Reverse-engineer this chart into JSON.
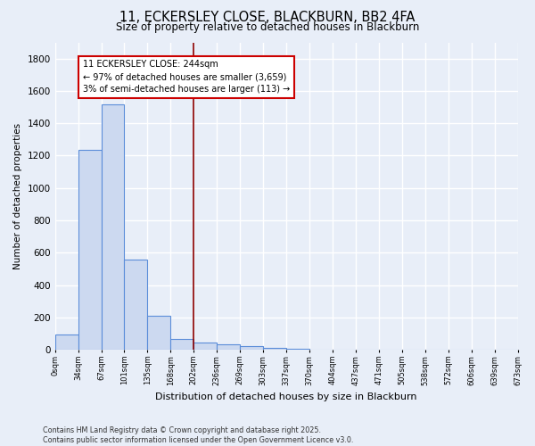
{
  "title": "11, ECKERSLEY CLOSE, BLACKBURN, BB2 4FA",
  "subtitle": "Size of property relative to detached houses in Blackburn",
  "xlabel": "Distribution of detached houses by size in Blackburn",
  "ylabel": "Number of detached properties",
  "footer_line1": "Contains HM Land Registry data © Crown copyright and database right 2025.",
  "footer_line2": "Contains public sector information licensed under the Open Government Licence v3.0.",
  "bins": [
    "0sqm",
    "34sqm",
    "67sqm",
    "101sqm",
    "135sqm",
    "168sqm",
    "202sqm",
    "236sqm",
    "269sqm",
    "303sqm",
    "337sqm",
    "370sqm",
    "404sqm",
    "437sqm",
    "471sqm",
    "505sqm",
    "538sqm",
    "572sqm",
    "606sqm",
    "639sqm",
    "673sqm"
  ],
  "values": [
    95,
    1235,
    1515,
    560,
    210,
    65,
    45,
    35,
    25,
    10,
    5,
    0,
    0,
    0,
    0,
    0,
    0,
    0,
    0,
    0
  ],
  "bar_color": "#ccd9f0",
  "bar_edge_color": "#5b8dd9",
  "background_color": "#e8eef8",
  "grid_color": "#ffffff",
  "annotation_text": "11 ECKERSLEY CLOSE: 244sqm\n← 97% of detached houses are smaller (3,659)\n3% of semi-detached houses are larger (113) →",
  "vline_x_bin": 6,
  "vline_color": "#8b0000",
  "ylim": [
    0,
    1900
  ],
  "yticks": [
    0,
    200,
    400,
    600,
    800,
    1000,
    1200,
    1400,
    1600,
    1800
  ]
}
